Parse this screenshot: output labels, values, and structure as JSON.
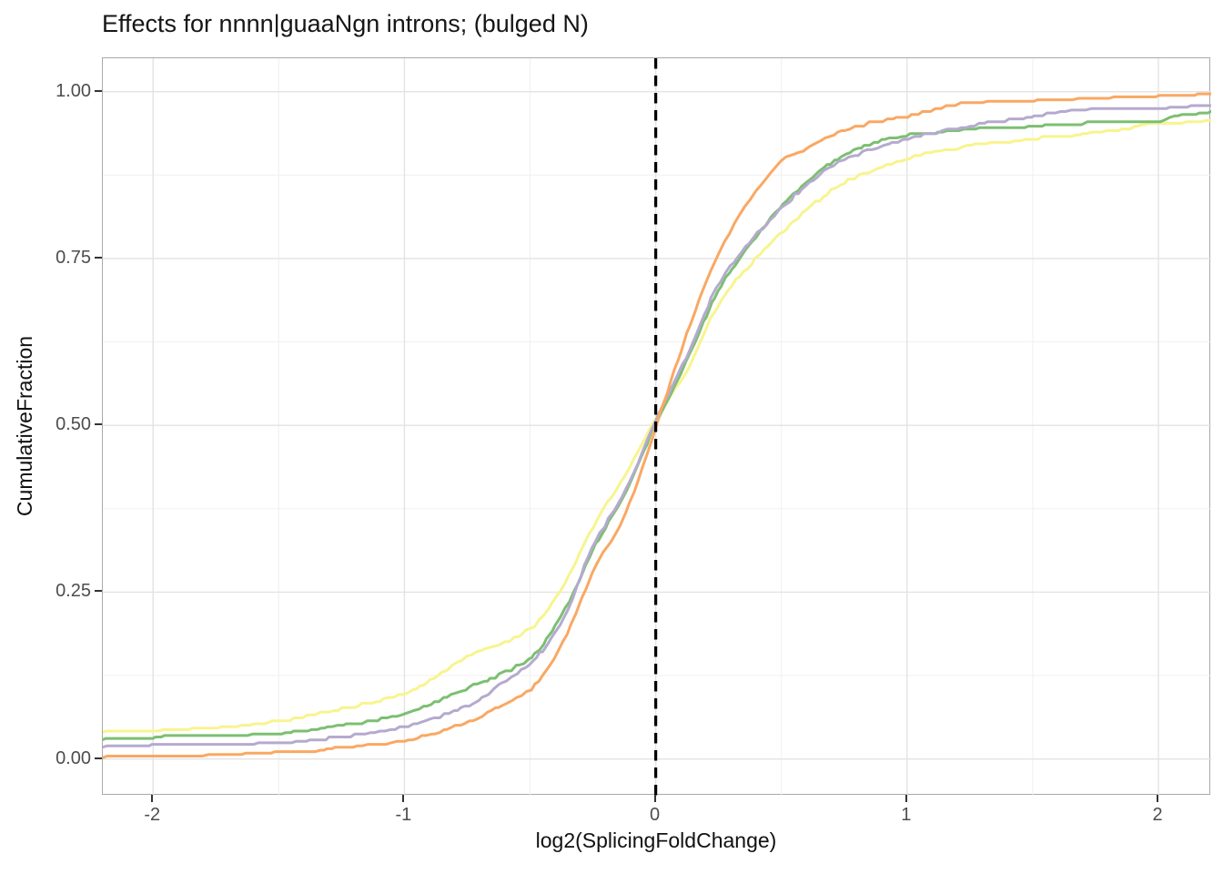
{
  "chart_data": {
    "type": "line",
    "variant": "ecdf",
    "title": "Effects for nnnn|guaaNgn introns; (bulged N)",
    "xlabel": "log2(SplicingFoldChange)",
    "ylabel": "CumulativeFraction",
    "xlim": [
      -2.2,
      2.21
    ],
    "ylim": [
      -0.055,
      1.05
    ],
    "x_ticks": [
      -2,
      -1,
      0,
      1,
      2
    ],
    "x_tick_labels": [
      "-2",
      "-1",
      "0",
      "1",
      "2"
    ],
    "x_minor_ticks": [
      -1.5,
      -0.5,
      0.5,
      1.5
    ],
    "y_ticks": [
      0,
      0.25,
      0.5,
      0.75,
      1
    ],
    "y_tick_labels": [
      "0.00",
      "0.25",
      "0.50",
      "0.75",
      "1.00"
    ],
    "y_minor_ticks": [
      0.125,
      0.375,
      0.625,
      0.875
    ],
    "grid": "major+minor",
    "legend": "none",
    "vline": {
      "x": 0,
      "style": "dashed",
      "color": "#000000",
      "width": 3.2
    },
    "series": [
      {
        "name": "yellow-curve",
        "color": "#F8F48F",
        "points": [
          [
            -2.2,
            0.04
          ],
          [
            -2.0,
            0.042
          ],
          [
            -1.75,
            0.046
          ],
          [
            -1.5,
            0.056
          ],
          [
            -1.25,
            0.075
          ],
          [
            -1.0,
            0.097
          ],
          [
            -0.85,
            0.13
          ],
          [
            -0.75,
            0.154
          ],
          [
            -0.6,
            0.175
          ],
          [
            -0.5,
            0.195
          ],
          [
            -0.375,
            0.255
          ],
          [
            -0.25,
            0.348
          ],
          [
            -0.125,
            0.424
          ],
          [
            0,
            0.51
          ],
          [
            0.125,
            0.581
          ],
          [
            0.25,
            0.682
          ],
          [
            0.375,
            0.74
          ],
          [
            0.5,
            0.789
          ],
          [
            0.625,
            0.83
          ],
          [
            0.75,
            0.864
          ],
          [
            1.0,
            0.9
          ],
          [
            1.25,
            0.918
          ],
          [
            1.5,
            0.929
          ],
          [
            1.75,
            0.938
          ],
          [
            2.0,
            0.952
          ],
          [
            2.21,
            0.956
          ]
        ]
      },
      {
        "name": "green-curve",
        "color": "#7CBF72",
        "points": [
          [
            -2.2,
            0.029
          ],
          [
            -2.0,
            0.032
          ],
          [
            -1.75,
            0.034
          ],
          [
            -1.5,
            0.038
          ],
          [
            -1.25,
            0.05
          ],
          [
            -1.0,
            0.068
          ],
          [
            -0.85,
            0.09
          ],
          [
            -0.75,
            0.106
          ],
          [
            -0.6,
            0.13
          ],
          [
            -0.5,
            0.151
          ],
          [
            -0.375,
            0.215
          ],
          [
            -0.25,
            0.313
          ],
          [
            -0.125,
            0.396
          ],
          [
            0,
            0.503
          ],
          [
            0.125,
            0.598
          ],
          [
            0.25,
            0.703
          ],
          [
            0.375,
            0.77
          ],
          [
            0.5,
            0.828
          ],
          [
            0.625,
            0.872
          ],
          [
            0.75,
            0.905
          ],
          [
            1.0,
            0.934
          ],
          [
            1.25,
            0.943
          ],
          [
            1.5,
            0.948
          ],
          [
            1.75,
            0.953
          ],
          [
            2.0,
            0.956
          ],
          [
            2.1,
            0.966
          ],
          [
            2.21,
            0.969
          ]
        ]
      },
      {
        "name": "purple-curve",
        "color": "#B5AACE",
        "points": [
          [
            -2.2,
            0.018
          ],
          [
            -2.0,
            0.02
          ],
          [
            -1.75,
            0.021
          ],
          [
            -1.5,
            0.023
          ],
          [
            -1.25,
            0.033
          ],
          [
            -1.0,
            0.048
          ],
          [
            -0.85,
            0.065
          ],
          [
            -0.75,
            0.079
          ],
          [
            -0.6,
            0.116
          ],
          [
            -0.5,
            0.143
          ],
          [
            -0.375,
            0.205
          ],
          [
            -0.25,
            0.318
          ],
          [
            -0.125,
            0.4
          ],
          [
            0,
            0.506
          ],
          [
            0.125,
            0.604
          ],
          [
            0.25,
            0.711
          ],
          [
            0.375,
            0.775
          ],
          [
            0.5,
            0.825
          ],
          [
            0.625,
            0.868
          ],
          [
            0.75,
            0.898
          ],
          [
            1.0,
            0.929
          ],
          [
            1.25,
            0.948
          ],
          [
            1.5,
            0.963
          ],
          [
            1.7,
            0.972
          ],
          [
            2.0,
            0.974
          ],
          [
            2.21,
            0.978
          ]
        ]
      },
      {
        "name": "orange-curve",
        "color": "#F9A863",
        "points": [
          [
            -2.2,
            0.002
          ],
          [
            -2.0,
            0.003
          ],
          [
            -1.75,
            0.005
          ],
          [
            -1.5,
            0.009
          ],
          [
            -1.25,
            0.016
          ],
          [
            -1.0,
            0.027
          ],
          [
            -0.85,
            0.042
          ],
          [
            -0.75,
            0.055
          ],
          [
            -0.6,
            0.082
          ],
          [
            -0.5,
            0.104
          ],
          [
            -0.375,
            0.17
          ],
          [
            -0.25,
            0.28
          ],
          [
            -0.125,
            0.363
          ],
          [
            0,
            0.497
          ],
          [
            0.125,
            0.638
          ],
          [
            0.25,
            0.758
          ],
          [
            0.375,
            0.838
          ],
          [
            0.5,
            0.895
          ],
          [
            0.625,
            0.92
          ],
          [
            0.75,
            0.943
          ],
          [
            1.0,
            0.963
          ],
          [
            1.25,
            0.982
          ],
          [
            1.5,
            0.986
          ],
          [
            1.75,
            0.99
          ],
          [
            2.0,
            0.993
          ],
          [
            2.21,
            0.995
          ]
        ]
      }
    ]
  },
  "style": {
    "stroke_width": 3,
    "grid_major_color": "#E3E3E3",
    "grid_minor_color": "#F0F0F0",
    "panel_border_color": "#A9A9A9",
    "tick_color": "#333333",
    "tick_label_color": "#4D4D4D",
    "title_color": "#161616",
    "axis_title_color": "#111111",
    "background_color": "#FFFFFF"
  }
}
